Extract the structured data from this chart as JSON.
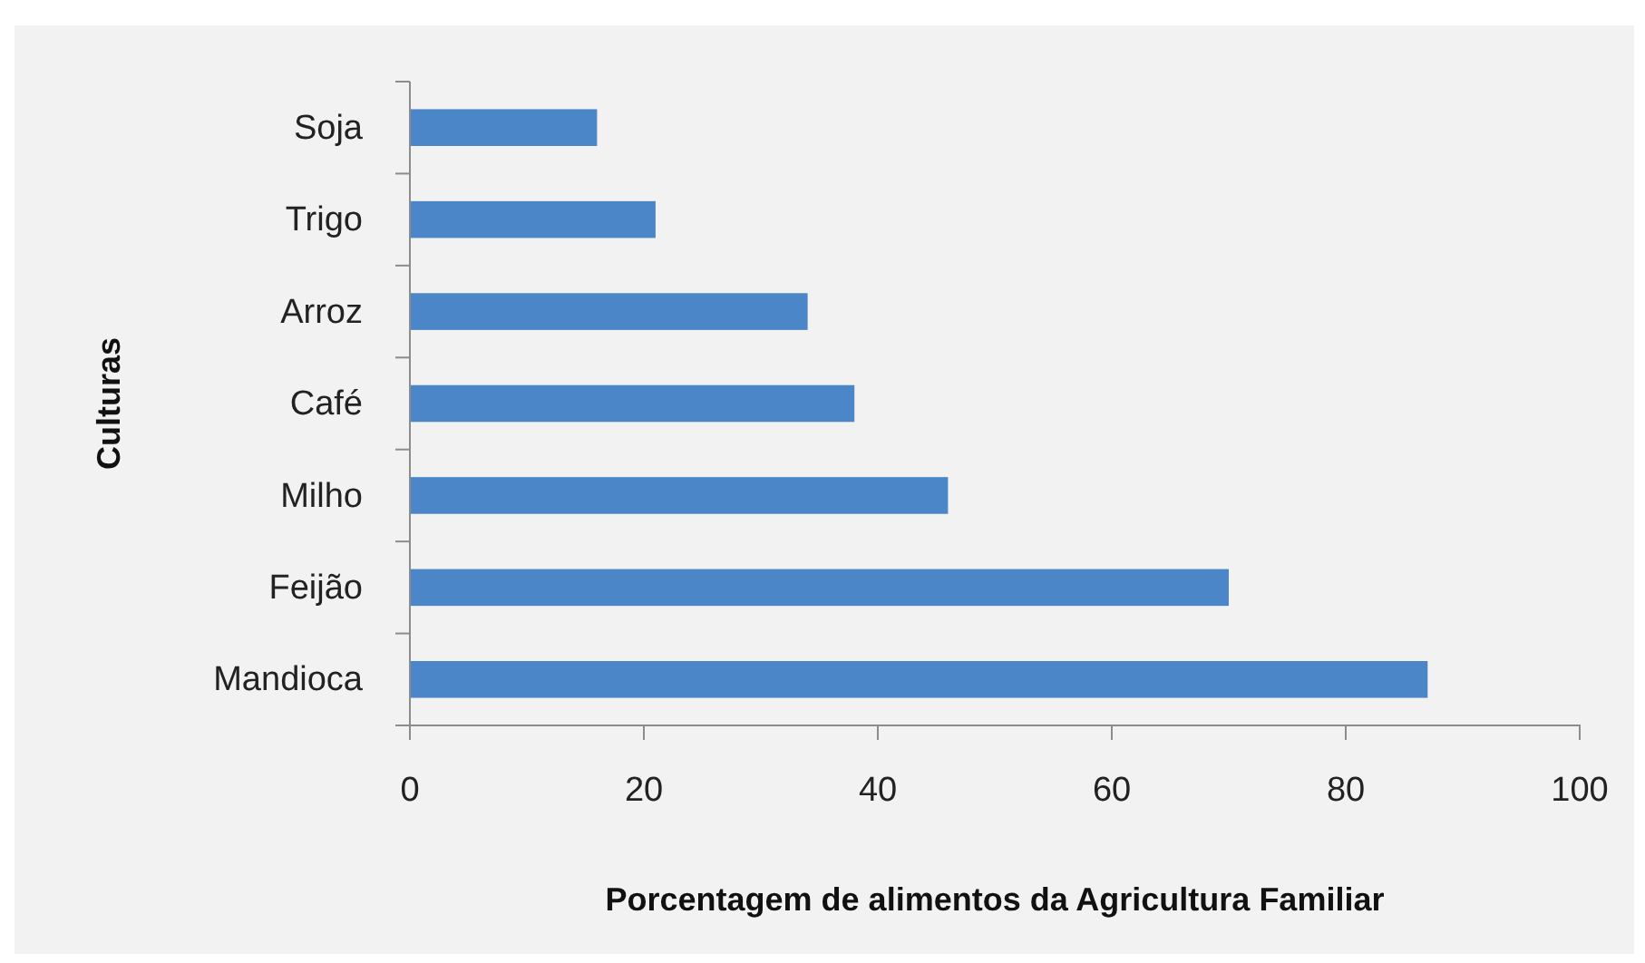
{
  "chart_data": {
    "type": "bar",
    "orientation": "horizontal",
    "categories": [
      "Soja",
      "Trigo",
      "Arroz",
      "Café",
      "Milho",
      "Feijão",
      "Mandioca"
    ],
    "values": [
      16,
      21,
      34,
      38,
      46,
      70,
      87
    ],
    "color": "#4a86c8",
    "xlim": [
      0,
      100
    ],
    "xticks": [
      0,
      20,
      40,
      60,
      80,
      100
    ],
    "xlabel": "Porcentagem de alimentos da Agricultura Familiar",
    "ylabel": "Culturas",
    "grid": false
  }
}
